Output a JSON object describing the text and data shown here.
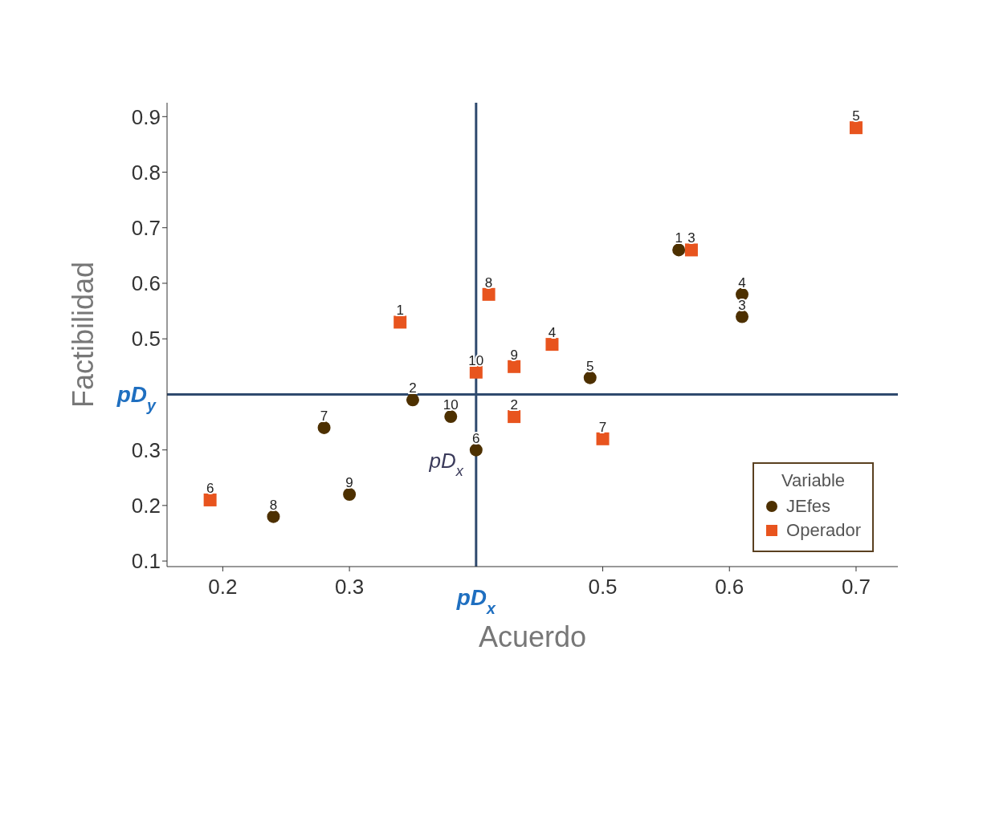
{
  "chart_data": {
    "type": "scatter",
    "xlabel": "Acuerdo",
    "ylabel": "Factibilidad",
    "legend_title": "Variable",
    "legend": "bottom right",
    "grid": false,
    "xlim": [
      0.156,
      0.733
    ],
    "xticks": [
      0.2,
      0.3,
      0.5,
      0.6,
      0.7
    ],
    "ylim": [
      0.09,
      0.925
    ],
    "yticks": [
      0.1,
      0.2,
      0.3,
      0.5,
      0.6,
      0.7,
      0.8,
      0.9
    ],
    "series": [
      {
        "name": "JEfes",
        "color": "#4d3000",
        "marker": "circle",
        "x": [
          0.56,
          0.35,
          0.61,
          0.61,
          0.49,
          0.4,
          0.28,
          0.24,
          0.3,
          0.38
        ],
        "values": [
          0.66,
          0.39,
          0.54,
          0.58,
          0.43,
          0.3,
          0.34,
          0.18,
          0.22,
          0.36
        ]
      },
      {
        "name": "Operador",
        "color": "#e8541e",
        "marker": "square",
        "x": [
          0.34,
          0.43,
          0.57,
          0.46,
          0.7,
          0.19,
          0.5,
          0.41,
          0.43,
          0.4
        ],
        "values": [
          0.53,
          0.36,
          0.66,
          0.49,
          0.88,
          0.21,
          0.32,
          0.58,
          0.45,
          0.44
        ]
      }
    ],
    "ref_lines": [
      {
        "axis": "x",
        "value": 0.4,
        "label": "pD$_{x}$",
        "color": "#2f4a6e"
      },
      {
        "axis": "y",
        "value": 0.4,
        "label": "pD$_{y}$",
        "color": "#2f4a6e"
      }
    ],
    "annotations": [
      {
        "text": "1",
        "x": 0.56,
        "y": 0.66
      },
      {
        "text": "2",
        "x": 0.35,
        "y": 0.39
      },
      {
        "text": "3",
        "x": 0.61,
        "y": 0.54
      },
      {
        "text": "4",
        "x": 0.61,
        "y": 0.58
      },
      {
        "text": "5",
        "x": 0.49,
        "y": 0.43
      },
      {
        "text": "6",
        "x": 0.4,
        "y": 0.3
      },
      {
        "text": "7",
        "x": 0.28,
        "y": 0.34
      },
      {
        "text": "8",
        "x": 0.24,
        "y": 0.18
      },
      {
        "text": "9",
        "x": 0.3,
        "y": 0.22
      },
      {
        "text": "10",
        "x": 0.38,
        "y": 0.36
      },
      {
        "text": "1",
        "x": 0.34,
        "y": 0.53
      },
      {
        "text": "2",
        "x": 0.43,
        "y": 0.36
      },
      {
        "text": "3",
        "x": 0.57,
        "y": 0.66
      },
      {
        "text": "4",
        "x": 0.46,
        "y": 0.49
      },
      {
        "text": "5",
        "x": 0.7,
        "y": 0.88
      },
      {
        "text": "6",
        "x": 0.19,
        "y": 0.21
      },
      {
        "text": "7",
        "x": 0.5,
        "y": 0.32
      },
      {
        "text": "8",
        "x": 0.41,
        "y": 0.58
      },
      {
        "text": "9",
        "x": 0.43,
        "y": 0.45
      },
      {
        "text": "10",
        "x": 0.4,
        "y": 0.44
      },
      {
        "text": "pD$_{x}$",
        "x": 0.4,
        "y": 0.3
      }
    ]
  }
}
